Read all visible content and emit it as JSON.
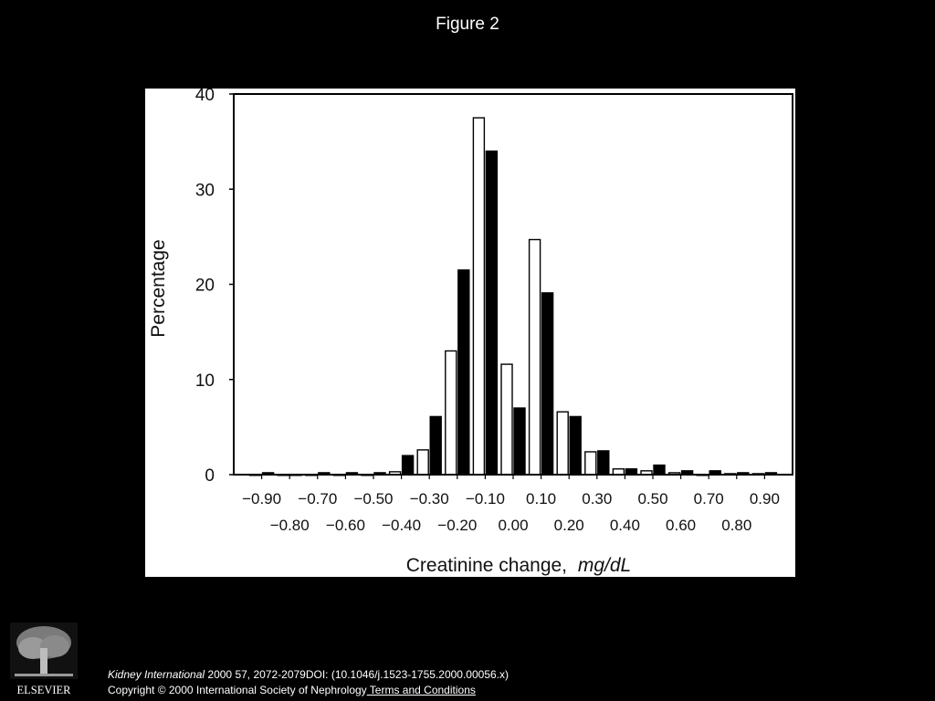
{
  "figure": {
    "title": "Figure 2"
  },
  "chart_data": {
    "type": "bar",
    "ylabel": "Percentage",
    "xlabel_main": "Creatinine change,",
    "xlabel_units": "mg/dL",
    "ylim": [
      0,
      40
    ],
    "yticks": [
      0,
      10,
      20,
      30,
      40
    ],
    "xlim": [
      -1.0,
      1.0
    ],
    "tick_labels_row1": [
      "−0.90",
      "−0.70",
      "−0.50",
      "−0.30",
      "−0.10",
      "0.10",
      "0.30",
      "0.50",
      "0.70",
      "0.90"
    ],
    "tick_values_row1": [
      -0.9,
      -0.7,
      -0.5,
      -0.3,
      -0.1,
      0.1,
      0.3,
      0.5,
      0.7,
      0.9
    ],
    "tick_labels_row2": [
      "−0.80",
      "−0.60",
      "−0.40",
      "−0.20",
      "0.00",
      "0.20",
      "0.40",
      "0.60",
      "0.80"
    ],
    "tick_values_row2": [
      -0.8,
      -0.6,
      -0.4,
      -0.2,
      0.0,
      0.2,
      0.4,
      0.6,
      0.8
    ],
    "categories": [
      -0.9,
      -0.8,
      -0.7,
      -0.6,
      -0.5,
      -0.4,
      -0.3,
      -0.2,
      -0.1,
      0.0,
      0.1,
      0.2,
      0.3,
      0.4,
      0.5,
      0.6,
      0.7,
      0.8,
      0.9
    ],
    "series": [
      {
        "fill": "#ffffff",
        "values": [
          0,
          0,
          0,
          0,
          0,
          0.3,
          2.6,
          13,
          37.5,
          11.6,
          24.7,
          6.6,
          2.4,
          0.6,
          0.4,
          0.2,
          0,
          0.1,
          0.1
        ]
      },
      {
        "fill": "#000000",
        "values": [
          0.2,
          0,
          0.2,
          0.2,
          0.2,
          2,
          6.1,
          21.5,
          34,
          7,
          19.1,
          6.1,
          2.5,
          0.6,
          1,
          0.4,
          0.4,
          0.2,
          0.2
        ]
      }
    ]
  },
  "citation": {
    "journal": "Kidney International",
    "details": " 2000 57, 2072-2079DOI: (10.1046/j.1523-1755.2000.00056.x)",
    "copyright": "Copyright © 2000 International Society of Nephrology",
    "terms_link": " Terms and Conditions"
  },
  "logo": {
    "text": "ELSEVIER",
    "icon": "elsevier-tree-logo"
  }
}
